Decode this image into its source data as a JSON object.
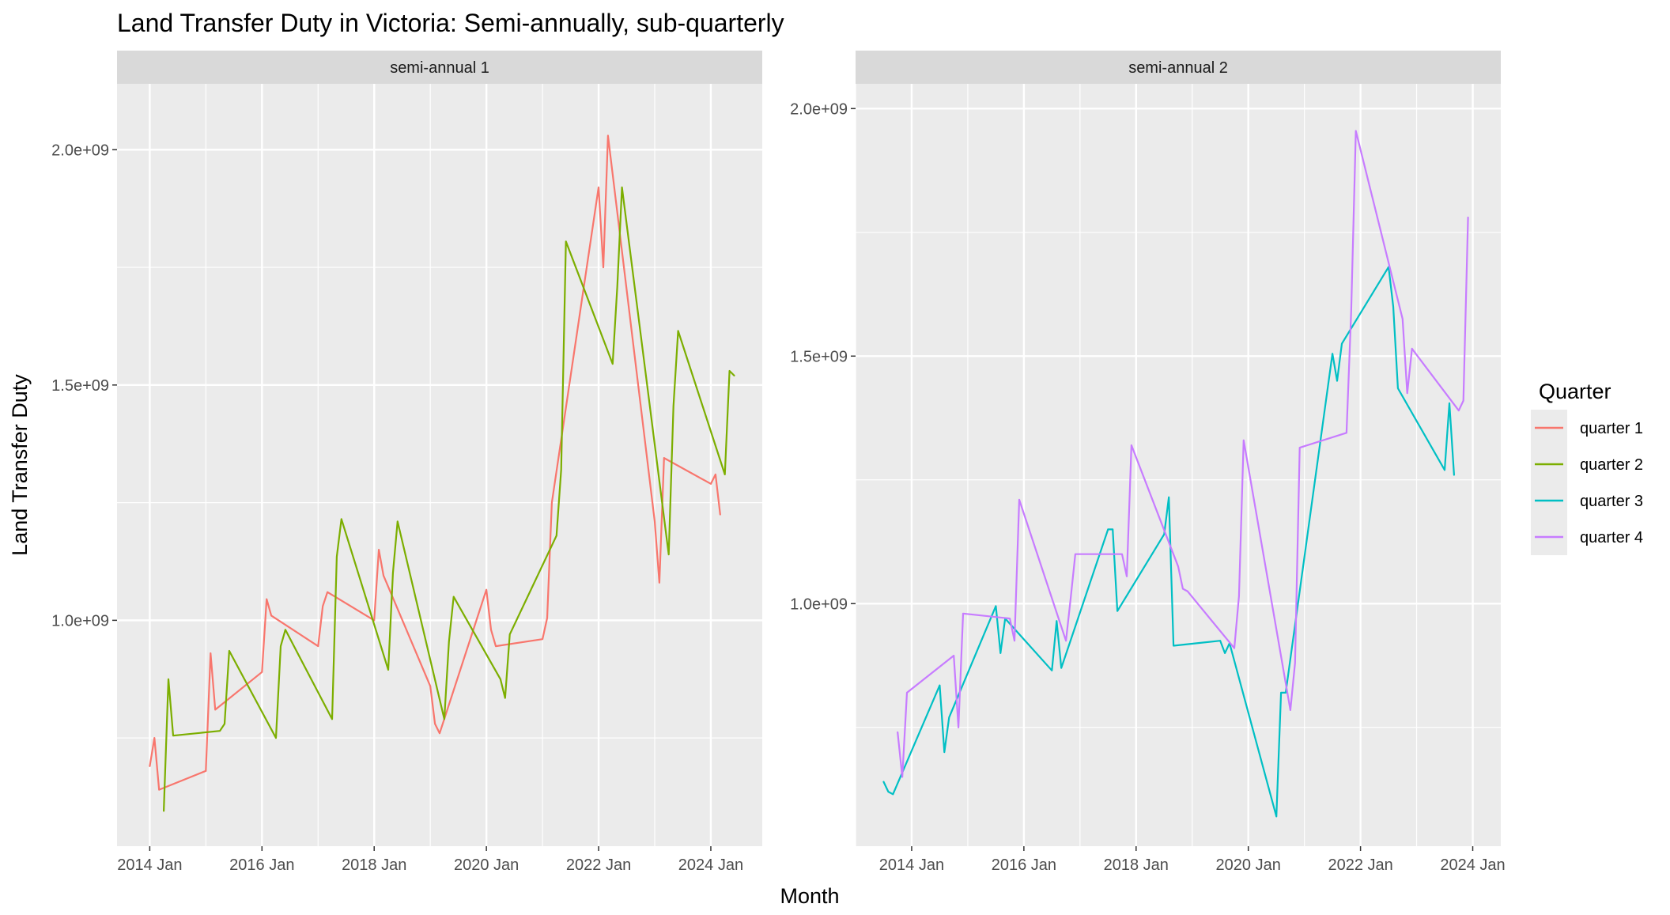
{
  "chart_data": {
    "type": "line",
    "title": "Land Transfer Duty in Victoria: Semi-annually, sub-quarterly",
    "xlabel": "Month",
    "ylabel": "Land Transfer Duty",
    "legend": {
      "title": "Quarter",
      "position": "right",
      "entries": [
        {
          "name": "quarter 1",
          "color": "#F8766D"
        },
        {
          "name": "quarter 2",
          "color": "#7CAE00"
        },
        {
          "name": "quarter 3",
          "color": "#00BFC4"
        },
        {
          "name": "quarter 4",
          "color": "#C77CFF"
        }
      ]
    },
    "grid": true,
    "panels": [
      {
        "strip": "semi-annual 1",
        "xlim": [
          "2013-06",
          "2024-12"
        ],
        "ylim": [
          520000000,
          2140000000
        ],
        "x_ticks": [
          {
            "value": "2014-01",
            "label": "2014 Jan"
          },
          {
            "value": "2016-01",
            "label": "2016 Jan"
          },
          {
            "value": "2018-01",
            "label": "2018 Jan"
          },
          {
            "value": "2020-01",
            "label": "2020 Jan"
          },
          {
            "value": "2022-01",
            "label": "2022 Jan"
          },
          {
            "value": "2024-01",
            "label": "2024 Jan"
          }
        ],
        "y_ticks": [
          {
            "value": 1000000000,
            "label": "1.0e+09"
          },
          {
            "value": 1500000000,
            "label": "1.5e+09"
          },
          {
            "value": 2000000000,
            "label": "2.0e+09"
          }
        ],
        "series": [
          {
            "name": "quarter 1",
            "color": "#F8766D",
            "points": [
              [
                "2014-01",
                690000000
              ],
              [
                "2014-02",
                750000000
              ],
              [
                "2014-03",
                640000000
              ],
              [
                "2015-01",
                680000000
              ],
              [
                "2015-02",
                930000000
              ],
              [
                "2015-03",
                810000000
              ],
              [
                "2016-01",
                890000000
              ],
              [
                "2016-02",
                1045000000
              ],
              [
                "2016-03",
                1010000000
              ],
              [
                "2017-01",
                945000000
              ],
              [
                "2017-02",
                1030000000
              ],
              [
                "2017-03",
                1060000000
              ],
              [
                "2018-01",
                1000000000
              ],
              [
                "2018-02",
                1150000000
              ],
              [
                "2018-03",
                1095000000
              ],
              [
                "2019-01",
                860000000
              ],
              [
                "2019-02",
                780000000
              ],
              [
                "2019-03",
                760000000
              ],
              [
                "2020-01",
                1065000000
              ],
              [
                "2020-02",
                980000000
              ],
              [
                "2020-03",
                945000000
              ],
              [
                "2021-01",
                960000000
              ],
              [
                "2021-02",
                1005000000
              ],
              [
                "2021-03",
                1250000000
              ],
              [
                "2022-01",
                1920000000
              ],
              [
                "2022-02",
                1750000000
              ],
              [
                "2022-03",
                2030000000
              ],
              [
                "2023-01",
                1210000000
              ],
              [
                "2023-02",
                1080000000
              ],
              [
                "2023-03",
                1345000000
              ],
              [
                "2024-01",
                1290000000
              ],
              [
                "2024-02",
                1310000000
              ],
              [
                "2024-03",
                1225000000
              ]
            ]
          },
          {
            "name": "quarter 2",
            "color": "#7CAE00",
            "points": [
              [
                "2014-04",
                595000000
              ],
              [
                "2014-05",
                875000000
              ],
              [
                "2014-06",
                755000000
              ],
              [
                "2015-04",
                765000000
              ],
              [
                "2015-05",
                780000000
              ],
              [
                "2015-06",
                935000000
              ],
              [
                "2016-04",
                750000000
              ],
              [
                "2016-05",
                945000000
              ],
              [
                "2016-06",
                980000000
              ],
              [
                "2017-04",
                790000000
              ],
              [
                "2017-05",
                1135000000
              ],
              [
                "2017-06",
                1215000000
              ],
              [
                "2018-04",
                895000000
              ],
              [
                "2018-05",
                1100000000
              ],
              [
                "2018-06",
                1210000000
              ],
              [
                "2019-04",
                790000000
              ],
              [
                "2019-05",
                955000000
              ],
              [
                "2019-06",
                1050000000
              ],
              [
                "2020-04",
                875000000
              ],
              [
                "2020-05",
                835000000
              ],
              [
                "2020-06",
                970000000
              ],
              [
                "2021-04",
                1180000000
              ],
              [
                "2021-05",
                1320000000
              ],
              [
                "2021-06",
                1805000000
              ],
              [
                "2022-04",
                1545000000
              ],
              [
                "2022-05",
                1710000000
              ],
              [
                "2022-06",
                1920000000
              ],
              [
                "2023-04",
                1140000000
              ],
              [
                "2023-05",
                1455000000
              ],
              [
                "2023-06",
                1615000000
              ],
              [
                "2024-04",
                1310000000
              ],
              [
                "2024-05",
                1530000000
              ],
              [
                "2024-06",
                1520000000
              ]
            ]
          }
        ]
      },
      {
        "strip": "semi-annual 2",
        "xlim": [
          "2013-01",
          "2024-07"
        ],
        "ylim": [
          510000000,
          2050000000
        ],
        "x_ticks": [
          {
            "value": "2014-01",
            "label": "2014 Jan"
          },
          {
            "value": "2016-01",
            "label": "2016 Jan"
          },
          {
            "value": "2018-01",
            "label": "2018 Jan"
          },
          {
            "value": "2020-01",
            "label": "2020 Jan"
          },
          {
            "value": "2022-01",
            "label": "2022 Jan"
          },
          {
            "value": "2024-01",
            "label": "2024 Jan"
          }
        ],
        "y_ticks": [
          {
            "value": 1000000000,
            "label": "1.0e+09"
          },
          {
            "value": 1500000000,
            "label": "1.5e+09"
          },
          {
            "value": 2000000000,
            "label": "2.0e+09"
          }
        ],
        "series": [
          {
            "name": "quarter 3",
            "color": "#00BFC4",
            "points": [
              [
                "2013-07",
                640000000
              ],
              [
                "2013-08",
                620000000
              ],
              [
                "2013-09",
                615000000
              ],
              [
                "2014-07",
                835000000
              ],
              [
                "2014-08",
                700000000
              ],
              [
                "2014-09",
                770000000
              ],
              [
                "2015-07",
                995000000
              ],
              [
                "2015-08",
                900000000
              ],
              [
                "2015-09",
                970000000
              ],
              [
                "2016-07",
                865000000
              ],
              [
                "2016-08",
                965000000
              ],
              [
                "2016-09",
                870000000
              ],
              [
                "2017-07",
                1150000000
              ],
              [
                "2017-08",
                1150000000
              ],
              [
                "2017-09",
                985000000
              ],
              [
                "2018-07",
                1140000000
              ],
              [
                "2018-08",
                1215000000
              ],
              [
                "2018-09",
                915000000
              ],
              [
                "2019-07",
                925000000
              ],
              [
                "2019-08",
                900000000
              ],
              [
                "2019-09",
                920000000
              ],
              [
                "2020-07",
                570000000
              ],
              [
                "2020-08",
                820000000
              ],
              [
                "2020-09",
                820000000
              ],
              [
                "2021-07",
                1505000000
              ],
              [
                "2021-08",
                1450000000
              ],
              [
                "2021-09",
                1525000000
              ],
              [
                "2022-07",
                1680000000
              ],
              [
                "2022-08",
                1600000000
              ],
              [
                "2022-09",
                1435000000
              ],
              [
                "2023-07",
                1270000000
              ],
              [
                "2023-08",
                1405000000
              ],
              [
                "2023-09",
                1260000000
              ]
            ]
          },
          {
            "name": "quarter 4",
            "color": "#C77CFF",
            "points": [
              [
                "2013-10",
                740000000
              ],
              [
                "2013-11",
                650000000
              ],
              [
                "2013-12",
                820000000
              ],
              [
                "2014-10",
                895000000
              ],
              [
                "2014-11",
                750000000
              ],
              [
                "2014-12",
                980000000
              ],
              [
                "2015-10",
                970000000
              ],
              [
                "2015-11",
                925000000
              ],
              [
                "2015-12",
                1210000000
              ],
              [
                "2016-10",
                925000000
              ],
              [
                "2016-11",
                1010000000
              ],
              [
                "2016-12",
                1100000000
              ],
              [
                "2017-10",
                1100000000
              ],
              [
                "2017-11",
                1055000000
              ],
              [
                "2017-12",
                1320000000
              ],
              [
                "2018-10",
                1075000000
              ],
              [
                "2018-11",
                1030000000
              ],
              [
                "2018-12",
                1025000000
              ],
              [
                "2019-10",
                910000000
              ],
              [
                "2019-11",
                1015000000
              ],
              [
                "2019-12",
                1330000000
              ],
              [
                "2020-10",
                785000000
              ],
              [
                "2020-11",
                880000000
              ],
              [
                "2020-12",
                1315000000
              ],
              [
                "2021-10",
                1345000000
              ],
              [
                "2021-11",
                1590000000
              ],
              [
                "2021-12",
                1955000000
              ],
              [
                "2022-10",
                1575000000
              ],
              [
                "2022-11",
                1425000000
              ],
              [
                "2022-12",
                1515000000
              ],
              [
                "2023-10",
                1390000000
              ],
              [
                "2023-11",
                1410000000
              ],
              [
                "2023-12",
                1780000000
              ]
            ]
          }
        ]
      }
    ]
  }
}
